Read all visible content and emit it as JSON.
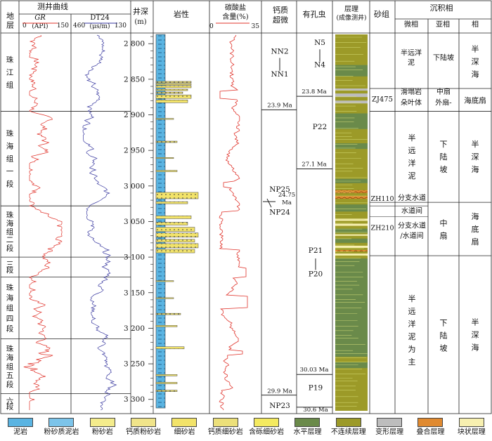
{
  "header": {
    "formation": "地层",
    "log_curves": "测井曲线",
    "gr_label": "GR",
    "gr_unit": "(API)",
    "gr_min": "0",
    "gr_max": "150",
    "dt_label": "DT24",
    "dt_unit": "(μs/m)",
    "dt_left": "460",
    "dt_right": "130",
    "depth": "井深",
    "depth_unit": "(m)",
    "lithology": "岩性",
    "carbonate": "碳酸盐",
    "carbonate2": "含量(%)",
    "carb_min": "0",
    "carb_max": "35",
    "nanno": "钙质",
    "nanno2": "超微",
    "foram": "有孔虫",
    "bedding": "层理",
    "bedding2": "(成像测井)",
    "sand_group": "砂组",
    "facies": "沉积相",
    "microfacies": "微相",
    "subfacies": "亚相",
    "facies_col": "相"
  },
  "formations": [
    {
      "label": "珠江组",
      "top": 2785,
      "bottom": 2895
    },
    {
      "label": "珠海组一段",
      "top": 2895,
      "bottom": 3028
    },
    {
      "label": "珠海组二段",
      "top": 3028,
      "bottom": 3100
    },
    {
      "label": "三段",
      "top": 3100,
      "bottom": 3128
    },
    {
      "label": "珠海组四段",
      "top": 3128,
      "bottom": 3215
    },
    {
      "label": "珠海组五段",
      "top": 3215,
      "bottom": 3292
    },
    {
      "label": "六段",
      "top": 3292,
      "bottom": 3320
    }
  ],
  "depth_ticks": [
    "2 800",
    "2 850",
    "2 900",
    "2 950",
    "3 000",
    "3 050",
    "3 100",
    "3 150",
    "3 200",
    "3 250",
    "3 300"
  ],
  "nanno_zones": [
    "NN2",
    "NN1",
    "NP25",
    "NP24",
    "NP23"
  ],
  "nanno_ages": [
    "23.9 Ma",
    "24.75 Ma",
    "29.9 Ma"
  ],
  "foram_zones": [
    "N5",
    "N4",
    "P22",
    "P21",
    "P20",
    "P19"
  ],
  "foram_ages": [
    "23.8 Ma",
    "27.1 Ma",
    "30.03 Ma",
    "30.6 Ma"
  ],
  "sand_groups": [
    "ZJ475",
    "ZH110",
    "ZH210"
  ],
  "microfacies": [
    "半远洋泥",
    "滑塌岩朵叶体",
    "半远洋泥",
    "分支水道",
    "水道间",
    "分支水道/水道间",
    "半远洋泥为主"
  ],
  "subfacies": [
    "下陆坡",
    "中扇-外扇",
    "下陆坡",
    "中扇",
    "下陆坡"
  ],
  "facies": [
    "半深海",
    "海底扇",
    "半深海",
    "海底扇",
    "半深海"
  ],
  "legend": [
    {
      "label": "泥岩",
      "color": "#5ab4e2"
    },
    {
      "label": "粉砂质泥岩",
      "color": "#7cc4ea"
    },
    {
      "label": "粉砂岩",
      "color": "#f4ec8c"
    },
    {
      "label": "钙质粉砂岩",
      "color": "#f0e48a"
    },
    {
      "label": "细砂岩",
      "color": "#f2e36a"
    },
    {
      "label": "钙质细砂岩",
      "color": "#ece07a"
    },
    {
      "label": "含砾细砂岩",
      "color": "#f4ea60"
    },
    {
      "label": "水平层理",
      "color": "#6a8a4a"
    },
    {
      "label": "不连续层理",
      "color": "#9c9a28"
    },
    {
      "label": "变形层理",
      "color": "#bdbdbd"
    },
    {
      "label": "叠合层理",
      "color": "#e08a30"
    },
    {
      "label": "块状层理",
      "color": "#f7f0b0"
    }
  ],
  "colors": {
    "gr": "#e0342c",
    "dt": "#3a3aa0",
    "mudstone": "#5ab4e2",
    "sand": "#f2e36a",
    "horizontal": "#6a8a4a",
    "discontinuous": "#9c9a28",
    "deformed": "#bdbdbd",
    "stacked": "#e08a30",
    "massive": "#f7f0b0"
  },
  "depth_range": [
    2785,
    3320
  ]
}
